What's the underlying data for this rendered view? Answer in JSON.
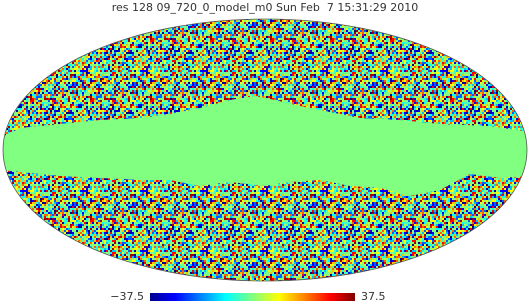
{
  "header": {
    "title": "res 128 09_720_0_model_m0 Sun Feb  7 15:31:29 2010"
  },
  "colorbar": {
    "min_label": "−37.5",
    "max_label": "37.5"
  }
}
